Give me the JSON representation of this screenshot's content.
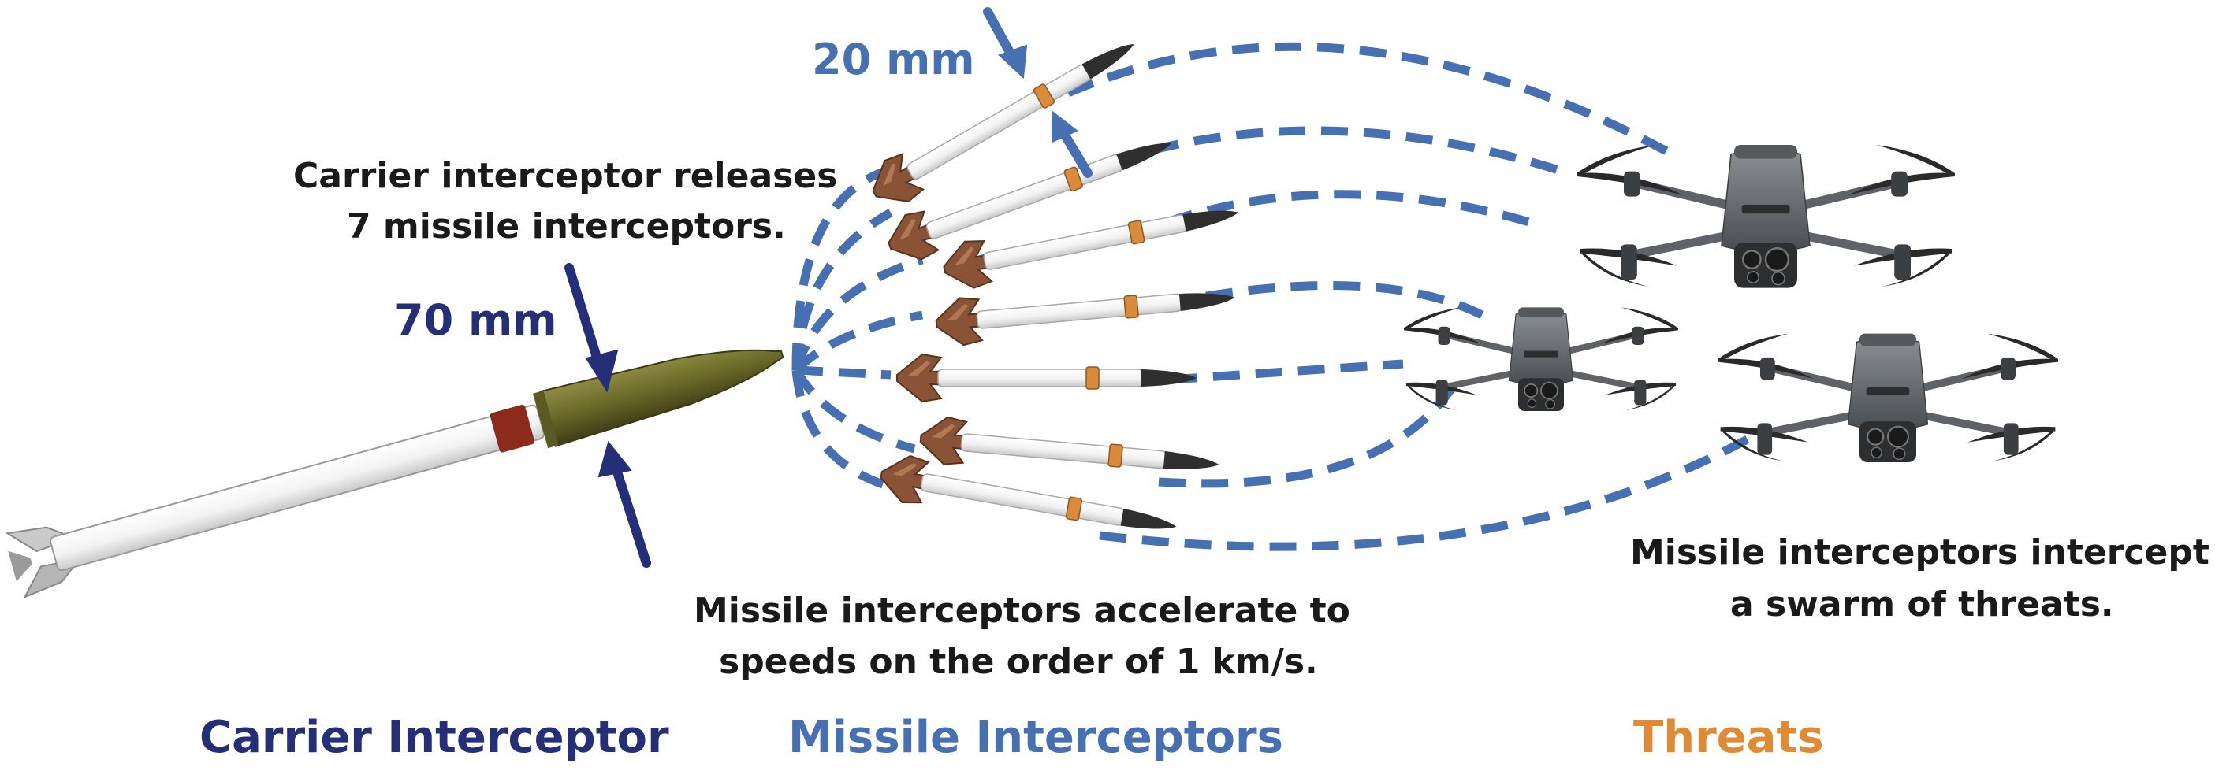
{
  "labels": {
    "dim_missile": "20 mm",
    "dim_carrier": "70 mm",
    "release_line1": "Carrier interceptor releases",
    "release_line2": "7 missile interceptors.",
    "accel_line1": "Missile interceptors accelerate to",
    "accel_line2": "speeds on the order of 1 km/s.",
    "intercept_line1": "Missile interceptors intercept",
    "intercept_line2": "a swarm of threats."
  },
  "categories": {
    "carrier": "Carrier Interceptor",
    "missiles": "Missile Interceptors",
    "threats": "Threats"
  },
  "colors": {
    "dark_navy": "#252f77",
    "medium_blue": "#4670b1",
    "orange": "#e08a33",
    "text": "#1a1a1a",
    "carrier_body": "#ffffff",
    "carrier_nose": "#6e6c2a",
    "carrier_band": "#8c2a1c",
    "missile_fin": "#8a5336",
    "drone_body": "#5f6367"
  },
  "icons": [
    "carrier-rocket-icon",
    "missile-icon",
    "drone-icon",
    "dimension-arrow-icon"
  ]
}
